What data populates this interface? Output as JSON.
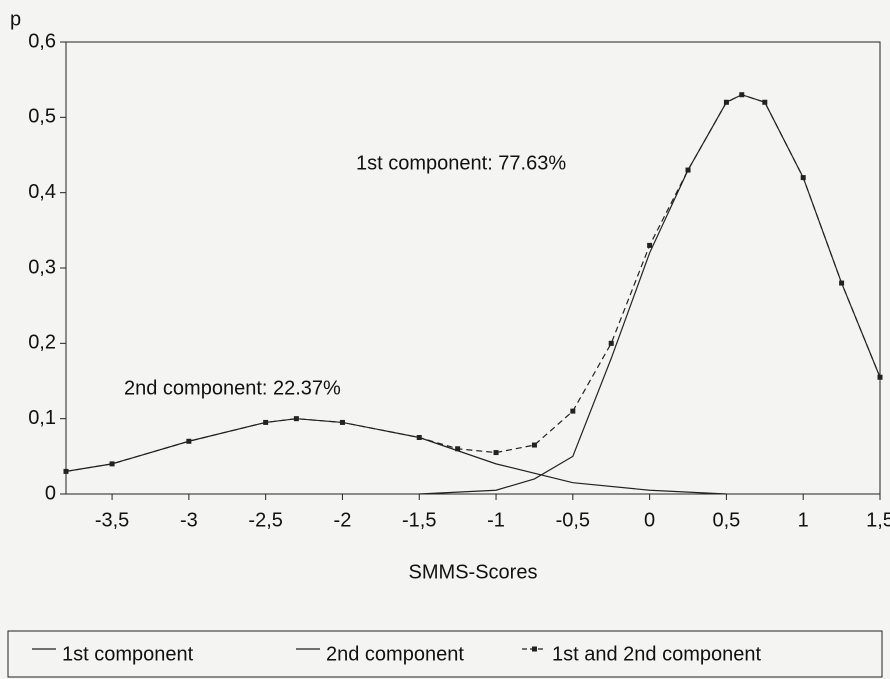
{
  "chart_data": {
    "type": "line",
    "xlabel": "SMMS-Scores",
    "ylabel": "p",
    "annotations": [
      "1st component: 77.63%",
      "2nd component: 22.37%"
    ],
    "xlim": [
      -3.8,
      1.5
    ],
    "ylim": [
      0,
      0.6
    ],
    "xticks": [
      {
        "value": -3.5,
        "label": "-3,5"
      },
      -3,
      {
        "value": -2.5,
        "label": "-2,5"
      },
      -2,
      {
        "value": -1.5,
        "label": "-1,5"
      },
      -1,
      {
        "value": -0.5,
        "label": "-0,5"
      },
      0,
      {
        "value": 0.5,
        "label": "0,5"
      },
      1,
      {
        "value": 1.5,
        "label": "1,5"
      }
    ],
    "yticks": [
      0,
      {
        "value": 0.1,
        "label": "0,1"
      },
      {
        "value": 0.2,
        "label": "0,2"
      },
      {
        "value": 0.3,
        "label": "0,3"
      },
      {
        "value": 0.4,
        "label": "0,4"
      },
      {
        "value": 0.5,
        "label": "0,5"
      },
      {
        "value": 0.6,
        "label": "0,6"
      }
    ],
    "series": [
      {
        "name": "1st component",
        "color": "#222222",
        "x": [
          -1.5,
          -1,
          -0.75,
          -0.5,
          -0.25,
          0,
          0.25,
          0.5,
          0.6,
          0.75,
          1,
          1.25,
          1.5
        ],
        "values": [
          0,
          0.005,
          0.02,
          0.05,
          0.18,
          0.32,
          0.43,
          0.52,
          0.53,
          0.52,
          0.42,
          0.28,
          0.155
        ]
      },
      {
        "name": "2nd component",
        "color": "#222222",
        "x": [
          -3.8,
          -3.5,
          -3,
          -2.5,
          -2.3,
          -2,
          -1.5,
          -1,
          -0.5,
          0,
          0.5
        ],
        "values": [
          0.03,
          0.04,
          0.07,
          0.095,
          0.1,
          0.095,
          0.075,
          0.04,
          0.015,
          0.005,
          0
        ]
      },
      {
        "name": "1st and 2nd component",
        "color": "#222222",
        "dashed": true,
        "markers": true,
        "x": [
          -3.8,
          -3.5,
          -3,
          -2.5,
          -2.3,
          -2,
          -1.5,
          -1.25,
          -1,
          -0.75,
          -0.5,
          -0.25,
          0,
          0.25,
          0.5,
          0.6,
          0.75,
          1,
          1.25,
          1.5
        ],
        "values": [
          0.03,
          0.04,
          0.07,
          0.095,
          0.1,
          0.095,
          0.075,
          0.06,
          0.055,
          0.065,
          0.11,
          0.2,
          0.33,
          0.43,
          0.52,
          0.53,
          0.52,
          0.42,
          0.28,
          0.155
        ]
      }
    ]
  }
}
